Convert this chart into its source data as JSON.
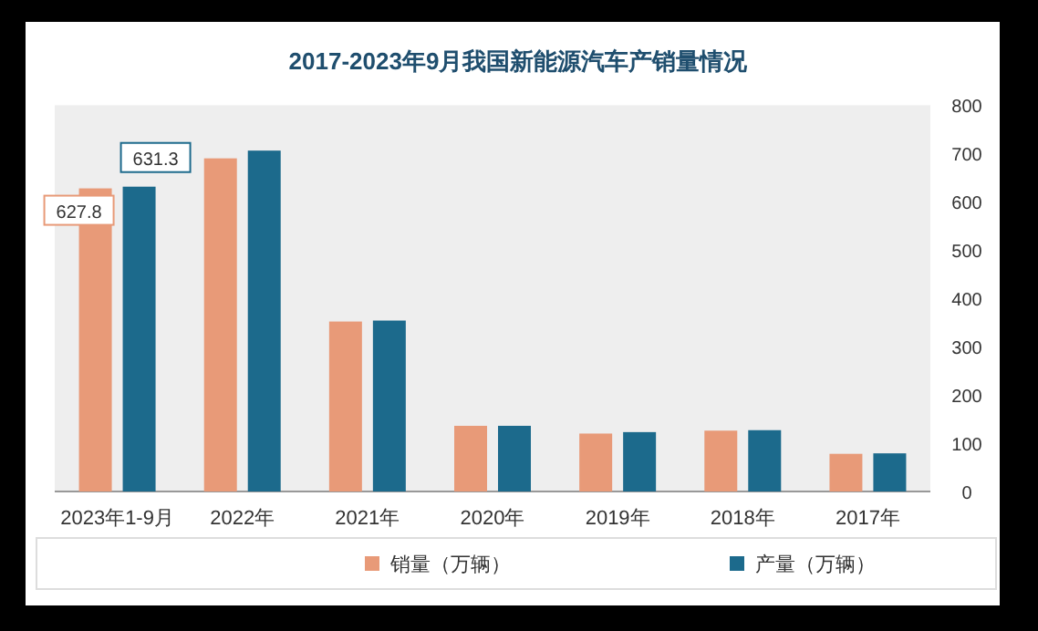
{
  "chart_data": {
    "type": "bar",
    "title": "2017-2023年9月我国新能源汽车产销量情况",
    "categories": [
      "2023年1-9月",
      "2022年",
      "2021年",
      "2020年",
      "2019年",
      "2018年",
      "2017年"
    ],
    "series": [
      {
        "name": "销量（万辆）",
        "color": "#e89a78",
        "values": [
          627.8,
          690,
          352,
          136,
          120,
          126,
          78
        ],
        "value_labels": [
          "627.8",
          null,
          null,
          null,
          null,
          null,
          null
        ]
      },
      {
        "name": "产量（万辆）",
        "color": "#1c6a8c",
        "values": [
          631.3,
          706,
          354,
          136,
          123,
          127,
          79
        ],
        "value_labels": [
          "631.3",
          null,
          null,
          null,
          null,
          null,
          null
        ]
      }
    ],
    "ylim": [
      0,
      800
    ],
    "yticks": [
      0,
      100,
      200,
      300,
      400,
      500,
      600,
      700,
      800
    ],
    "legend": "bottom",
    "grid": false
  }
}
